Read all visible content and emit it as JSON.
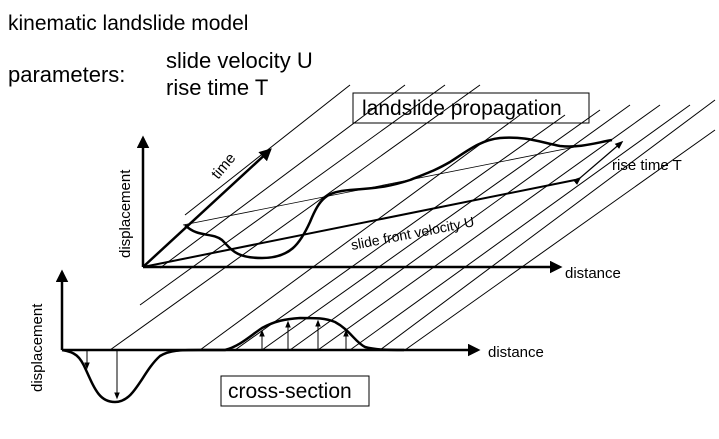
{
  "title": "kinematic landslide model",
  "parameters": {
    "label": "parameters:",
    "line1": "slide velocity U",
    "line2": "rise time T"
  },
  "top_panel": {
    "box_label": "landslide propagation",
    "y_axis_label": "displacement",
    "time_axis_label": "time",
    "x_axis_label": "distance",
    "front_label": "slide front velocity U",
    "rise_time_label": "rise time T"
  },
  "bottom_panel": {
    "box_label": "cross-section",
    "y_axis_label": "displacement",
    "x_axis_label": "distance"
  }
}
